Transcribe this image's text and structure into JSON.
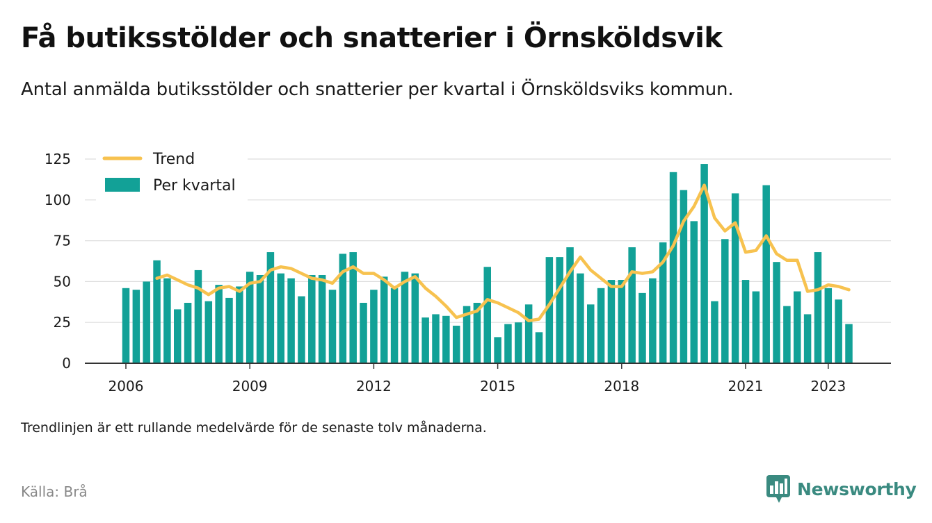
{
  "title": "Få butiksstölder och snatterier i Örnsköldsvik",
  "subtitle": "Antal anmälda butiksstölder och snatterier per kvartal i Örnsköldsviks kommun.",
  "footnote": "Trendlinjen är ett rullande medelvärde för de senaste tolv månaderna.",
  "source": "Källa: Brå",
  "brand": {
    "name": "Newsworthy",
    "icon": "newsworthy-logo-icon",
    "color": "#3a8a80"
  },
  "colors": {
    "bar": "#12a197",
    "trend": "#f7c24f",
    "grid": "#dddddd",
    "axis": "#333333"
  },
  "chart_data": {
    "type": "bar",
    "x_ticks": [
      "2006",
      "2009",
      "2012",
      "2015",
      "2018",
      "2021",
      "2023"
    ],
    "y_ticks": [
      0,
      25,
      50,
      75,
      100,
      125
    ],
    "ylim": [
      0,
      125
    ],
    "grid": true,
    "legend_position": "top-left",
    "start_quarter": "2006 Q1",
    "series": [
      {
        "name": "Per kvartal",
        "type": "bar",
        "values": [
          46,
          45,
          50,
          63,
          52,
          33,
          37,
          57,
          38,
          48,
          40,
          47,
          56,
          54,
          68,
          55,
          52,
          41,
          54,
          54,
          45,
          67,
          68,
          37,
          45,
          53,
          46,
          56,
          55,
          28,
          30,
          29,
          23,
          35,
          37,
          59,
          16,
          24,
          25,
          36,
          19,
          65,
          65,
          71,
          55,
          36,
          46,
          51,
          51,
          71,
          43,
          52,
          74,
          117,
          106,
          87,
          122,
          38,
          76,
          104,
          51,
          44,
          109,
          62,
          35,
          44,
          30,
          68,
          46,
          39,
          24
        ]
      },
      {
        "name": "Trend",
        "type": "line",
        "values": [
          null,
          null,
          null,
          52,
          54,
          51,
          48,
          46,
          42,
          46,
          47,
          44,
          49,
          50,
          57,
          59,
          58,
          55,
          52,
          51,
          49,
          56,
          59,
          55,
          55,
          51,
          46,
          50,
          53,
          46,
          41,
          35,
          28,
          30,
          32,
          39,
          37,
          34,
          31,
          26,
          27,
          36,
          46,
          56,
          65,
          57,
          52,
          47,
          47,
          56,
          55,
          56,
          62,
          72,
          87,
          96,
          109,
          89,
          81,
          86,
          68,
          69,
          78,
          67,
          63,
          63,
          44,
          45,
          48,
          47,
          45
        ]
      }
    ]
  }
}
